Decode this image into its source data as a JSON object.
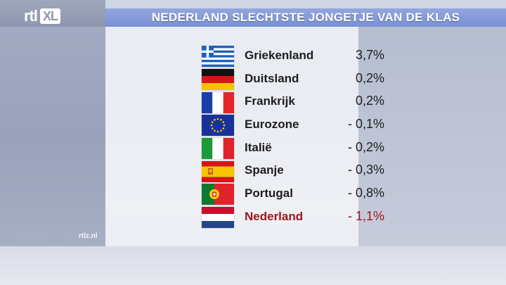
{
  "header": {
    "title": "NEDERLAND SLECHTSTE JONGETJE VAN DE KLAS",
    "logo_rtl": "rtl",
    "logo_xl": "XL"
  },
  "watermark": "rtlz.nl",
  "rows": [
    {
      "country": "Griekenland",
      "value": "3,7%",
      "flag": "greece-flag"
    },
    {
      "country": "Duitsland",
      "value": "0,2%",
      "flag": "germany-flag"
    },
    {
      "country": "Frankrijk",
      "value": "0,2%",
      "flag": "france-flag"
    },
    {
      "country": "Eurozone",
      "value": "- 0,1%",
      "flag": "eu-flag"
    },
    {
      "country": "Italië",
      "value": "- 0,2%",
      "flag": "italy-flag"
    },
    {
      "country": "Spanje",
      "value": "- 0,3%",
      "flag": "spain-flag"
    },
    {
      "country": "Portugal",
      "value": "- 0,8%",
      "flag": "portugal-flag"
    },
    {
      "country": "Nederland",
      "value": "-  1,1%",
      "flag": "netherlands-flag"
    }
  ],
  "colors": {
    "title_bar": "#7990d6",
    "highlight_text": "#a0141b"
  }
}
